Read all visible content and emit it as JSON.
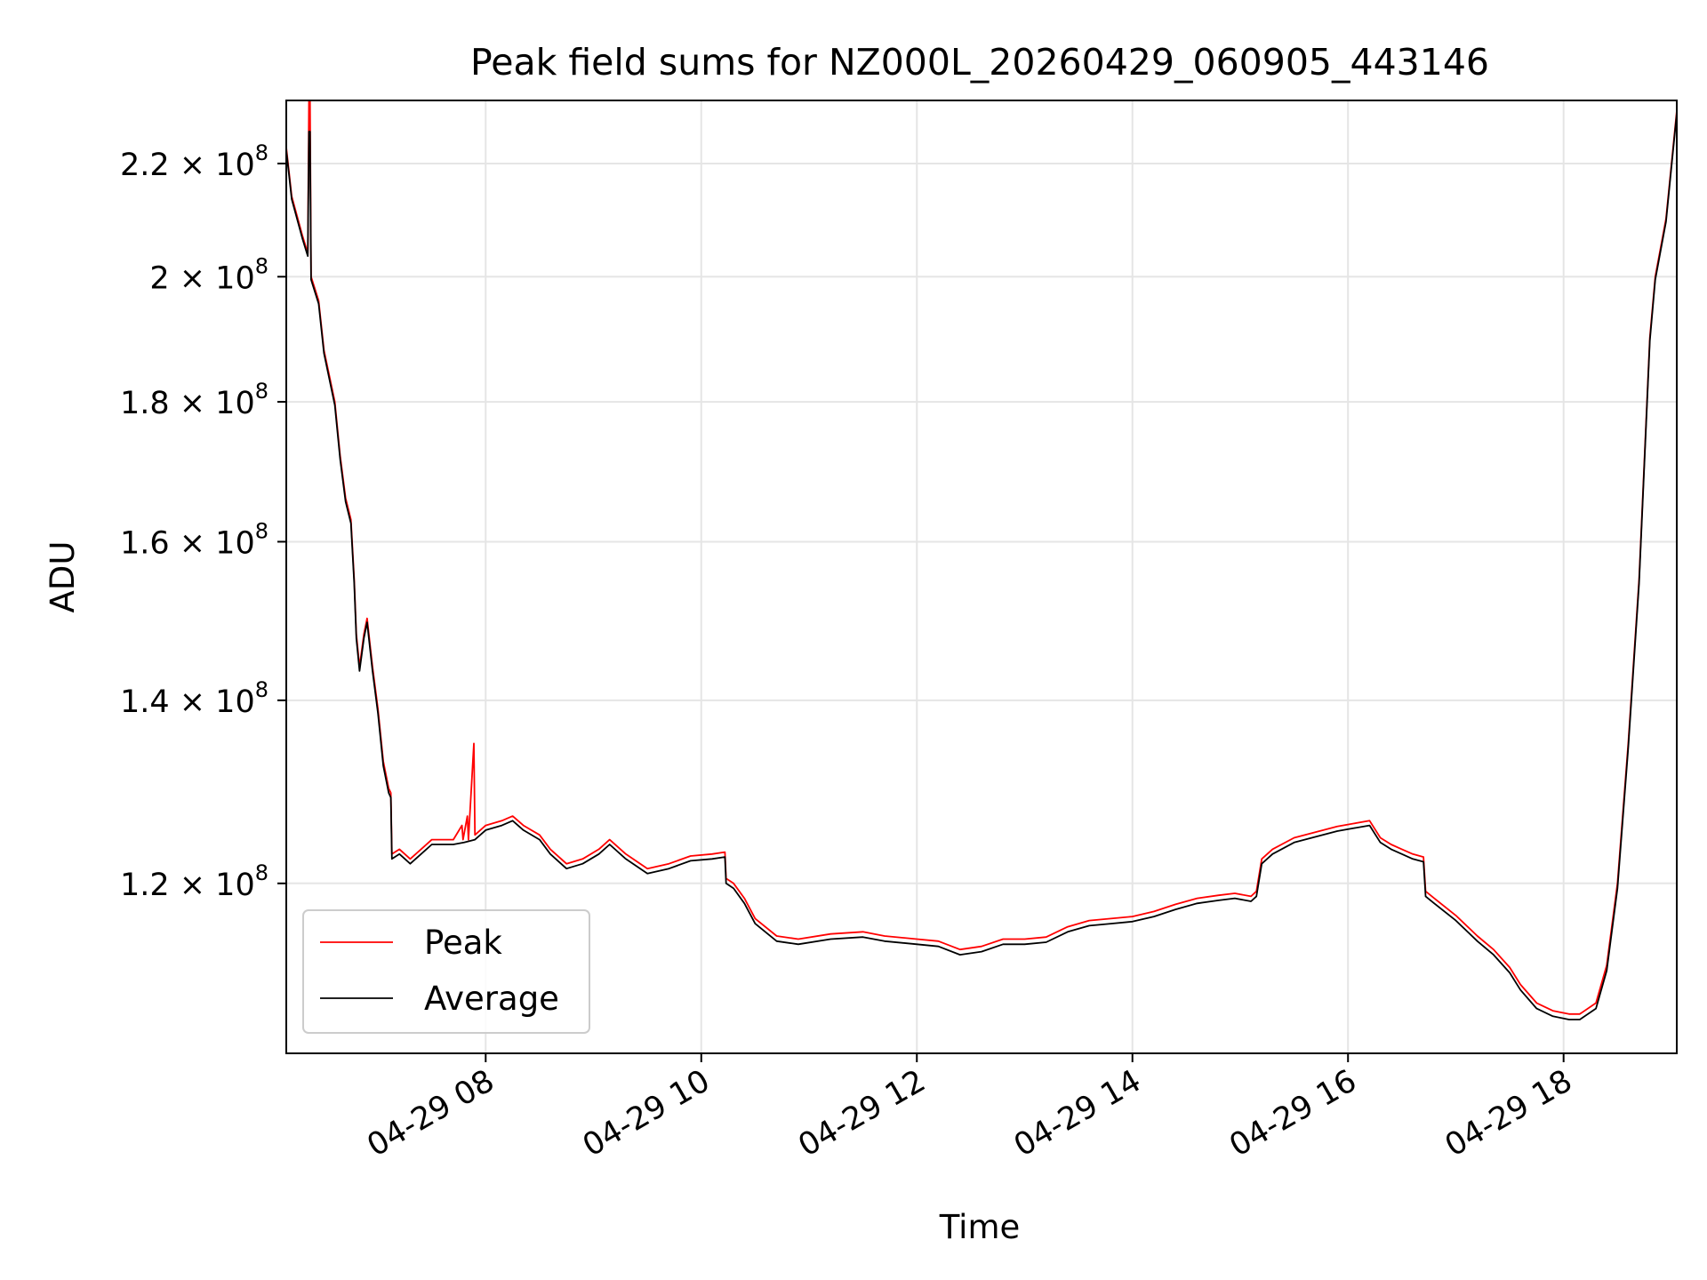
{
  "chart_data": {
    "type": "line",
    "title": "Peak field sums for NZ000L_20260429_060905_443146",
    "xlabel": "Time",
    "ylabel": "ADU",
    "x_unit": "hours of day, 2026-04-29",
    "xlim": [
      6.15,
      19.05
    ],
    "ylim": [
      104000000,
      232000000
    ],
    "y_scale": "log",
    "grid": true,
    "legend": {
      "position": "lower-left",
      "entries": [
        "Peak",
        "Average"
      ]
    },
    "x_ticks": [
      {
        "value": 8,
        "label": "04-29 08"
      },
      {
        "value": 10,
        "label": "04-29 10"
      },
      {
        "value": 12,
        "label": "04-29 12"
      },
      {
        "value": 14,
        "label": "04-29 14"
      },
      {
        "value": 16,
        "label": "04-29 16"
      },
      {
        "value": 18,
        "label": "04-29 18"
      }
    ],
    "y_ticks": [
      {
        "value": 120000000,
        "mantissa": "1.2",
        "exponent": "8"
      },
      {
        "value": 140000000,
        "mantissa": "1.4",
        "exponent": "8"
      },
      {
        "value": 160000000,
        "mantissa": "1.6",
        "exponent": "8"
      },
      {
        "value": 180000000,
        "mantissa": "1.8",
        "exponent": "8"
      },
      {
        "value": 200000000,
        "mantissa": "2",
        "exponent": "8"
      },
      {
        "value": 220000000,
        "mantissa": "2.2",
        "exponent": "8"
      }
    ],
    "series": [
      {
        "name": "Peak",
        "color": "#ff0000",
        "points": [
          [
            6.15,
            223000000
          ],
          [
            6.2,
            214000000
          ],
          [
            6.3,
            207000000
          ],
          [
            6.35,
            204000000
          ],
          [
            6.36,
            232000000
          ],
          [
            6.37,
            232000000
          ],
          [
            6.38,
            200000000
          ],
          [
            6.45,
            196000000
          ],
          [
            6.5,
            188000000
          ],
          [
            6.6,
            180000000
          ],
          [
            6.65,
            172000000
          ],
          [
            6.7,
            166000000
          ],
          [
            6.75,
            163000000
          ],
          [
            6.78,
            155000000
          ],
          [
            6.8,
            148000000
          ],
          [
            6.83,
            144000000
          ],
          [
            6.87,
            148000000
          ],
          [
            6.9,
            150000000
          ],
          [
            6.95,
            144000000
          ],
          [
            7.0,
            139000000
          ],
          [
            7.05,
            133000000
          ],
          [
            7.1,
            130000000
          ],
          [
            7.12,
            129500000
          ],
          [
            7.13,
            123000000
          ],
          [
            7.2,
            123500000
          ],
          [
            7.3,
            122500000
          ],
          [
            7.4,
            123500000
          ],
          [
            7.5,
            124500000
          ],
          [
            7.6,
            124500000
          ],
          [
            7.7,
            124500000
          ],
          [
            7.78,
            126000000
          ],
          [
            7.79,
            124500000
          ],
          [
            7.83,
            127000000
          ],
          [
            7.84,
            124500000
          ],
          [
            7.89,
            135000000
          ],
          [
            7.9,
            125000000
          ],
          [
            8.0,
            126000000
          ],
          [
            8.15,
            126500000
          ],
          [
            8.25,
            127000000
          ],
          [
            8.35,
            126000000
          ],
          [
            8.5,
            125000000
          ],
          [
            8.6,
            123500000
          ],
          [
            8.75,
            122000000
          ],
          [
            8.9,
            122500000
          ],
          [
            9.05,
            123500000
          ],
          [
            9.15,
            124500000
          ],
          [
            9.3,
            123000000
          ],
          [
            9.5,
            121500000
          ],
          [
            9.7,
            122000000
          ],
          [
            9.9,
            122800000
          ],
          [
            10.1,
            123000000
          ],
          [
            10.22,
            123200000
          ],
          [
            10.23,
            120500000
          ],
          [
            10.3,
            120000000
          ],
          [
            10.4,
            118500000
          ],
          [
            10.5,
            116500000
          ],
          [
            10.7,
            114800000
          ],
          [
            10.9,
            114500000
          ],
          [
            11.2,
            115000000
          ],
          [
            11.5,
            115200000
          ],
          [
            11.7,
            114800000
          ],
          [
            12.0,
            114500000
          ],
          [
            12.2,
            114300000
          ],
          [
            12.4,
            113500000
          ],
          [
            12.6,
            113800000
          ],
          [
            12.8,
            114500000
          ],
          [
            13.0,
            114500000
          ],
          [
            13.2,
            114700000
          ],
          [
            13.4,
            115700000
          ],
          [
            13.6,
            116300000
          ],
          [
            13.8,
            116500000
          ],
          [
            14.0,
            116700000
          ],
          [
            14.2,
            117200000
          ],
          [
            14.4,
            117900000
          ],
          [
            14.6,
            118500000
          ],
          [
            14.8,
            118800000
          ],
          [
            14.95,
            119000000
          ],
          [
            15.1,
            118700000
          ],
          [
            15.15,
            119200000
          ],
          [
            15.2,
            122500000
          ],
          [
            15.3,
            123500000
          ],
          [
            15.5,
            124700000
          ],
          [
            15.7,
            125300000
          ],
          [
            15.9,
            125900000
          ],
          [
            16.05,
            126200000
          ],
          [
            16.2,
            126500000
          ],
          [
            16.3,
            124700000
          ],
          [
            16.4,
            124000000
          ],
          [
            16.5,
            123500000
          ],
          [
            16.6,
            123000000
          ],
          [
            16.7,
            122700000
          ],
          [
            16.72,
            119200000
          ],
          [
            16.8,
            118500000
          ],
          [
            17.0,
            116800000
          ],
          [
            17.2,
            114800000
          ],
          [
            17.35,
            113500000
          ],
          [
            17.5,
            111800000
          ],
          [
            17.6,
            110200000
          ],
          [
            17.75,
            108500000
          ],
          [
            17.9,
            107800000
          ],
          [
            18.05,
            107500000
          ],
          [
            18.15,
            107500000
          ],
          [
            18.3,
            108500000
          ],
          [
            18.4,
            112000000
          ],
          [
            18.5,
            120000000
          ],
          [
            18.6,
            135000000
          ],
          [
            18.7,
            155000000
          ],
          [
            18.8,
            190000000
          ],
          [
            18.85,
            200000000
          ],
          [
            18.95,
            210000000
          ],
          [
            19.05,
            230000000
          ]
        ]
      },
      {
        "name": "Average",
        "color": "#000000",
        "points": [
          [
            6.15,
            222500000
          ],
          [
            6.2,
            213500000
          ],
          [
            6.3,
            206500000
          ],
          [
            6.35,
            203500000
          ],
          [
            6.36,
            226000000
          ],
          [
            6.37,
            226000000
          ],
          [
            6.38,
            199500000
          ],
          [
            6.45,
            195500000
          ],
          [
            6.5,
            187500000
          ],
          [
            6.6,
            179500000
          ],
          [
            6.65,
            171500000
          ],
          [
            6.7,
            165500000
          ],
          [
            6.75,
            162500000
          ],
          [
            6.78,
            154500000
          ],
          [
            6.8,
            147500000
          ],
          [
            6.83,
            143500000
          ],
          [
            6.87,
            147500000
          ],
          [
            6.9,
            149500000
          ],
          [
            6.95,
            143500000
          ],
          [
            7.0,
            138500000
          ],
          [
            7.05,
            132500000
          ],
          [
            7.1,
            129500000
          ],
          [
            7.12,
            129000000
          ],
          [
            7.13,
            122500000
          ],
          [
            7.2,
            123000000
          ],
          [
            7.3,
            122000000
          ],
          [
            7.4,
            123000000
          ],
          [
            7.5,
            124000000
          ],
          [
            7.6,
            124000000
          ],
          [
            7.7,
            124000000
          ],
          [
            7.8,
            124200000
          ],
          [
            7.9,
            124500000
          ],
          [
            8.0,
            125500000
          ],
          [
            8.15,
            126000000
          ],
          [
            8.25,
            126500000
          ],
          [
            8.35,
            125500000
          ],
          [
            8.5,
            124500000
          ],
          [
            8.6,
            123000000
          ],
          [
            8.75,
            121500000
          ],
          [
            8.9,
            122000000
          ],
          [
            9.05,
            123000000
          ],
          [
            9.15,
            124000000
          ],
          [
            9.3,
            122500000
          ],
          [
            9.5,
            121000000
          ],
          [
            9.7,
            121500000
          ],
          [
            9.9,
            122300000
          ],
          [
            10.1,
            122500000
          ],
          [
            10.22,
            122700000
          ],
          [
            10.23,
            120000000
          ],
          [
            10.3,
            119500000
          ],
          [
            10.4,
            118000000
          ],
          [
            10.5,
            116000000
          ],
          [
            10.7,
            114300000
          ],
          [
            10.9,
            114000000
          ],
          [
            11.2,
            114500000
          ],
          [
            11.5,
            114700000
          ],
          [
            11.7,
            114300000
          ],
          [
            12.0,
            114000000
          ],
          [
            12.2,
            113800000
          ],
          [
            12.4,
            113000000
          ],
          [
            12.6,
            113300000
          ],
          [
            12.8,
            114000000
          ],
          [
            13.0,
            114000000
          ],
          [
            13.2,
            114200000
          ],
          [
            13.4,
            115200000
          ],
          [
            13.6,
            115800000
          ],
          [
            13.8,
            116000000
          ],
          [
            14.0,
            116200000
          ],
          [
            14.2,
            116700000
          ],
          [
            14.4,
            117400000
          ],
          [
            14.6,
            118000000
          ],
          [
            14.8,
            118300000
          ],
          [
            14.95,
            118500000
          ],
          [
            15.1,
            118200000
          ],
          [
            15.15,
            118700000
          ],
          [
            15.2,
            122000000
          ],
          [
            15.3,
            123000000
          ],
          [
            15.5,
            124200000
          ],
          [
            15.7,
            124800000
          ],
          [
            15.9,
            125400000
          ],
          [
            16.05,
            125700000
          ],
          [
            16.2,
            126000000
          ],
          [
            16.3,
            124200000
          ],
          [
            16.4,
            123500000
          ],
          [
            16.5,
            123000000
          ],
          [
            16.6,
            122500000
          ],
          [
            16.7,
            122200000
          ],
          [
            16.72,
            118700000
          ],
          [
            16.8,
            118000000
          ],
          [
            17.0,
            116300000
          ],
          [
            17.2,
            114300000
          ],
          [
            17.35,
            113000000
          ],
          [
            17.5,
            111300000
          ],
          [
            17.6,
            109700000
          ],
          [
            17.75,
            108000000
          ],
          [
            17.9,
            107300000
          ],
          [
            18.05,
            107000000
          ],
          [
            18.15,
            107000000
          ],
          [
            18.3,
            108000000
          ],
          [
            18.4,
            111500000
          ],
          [
            18.5,
            119500000
          ],
          [
            18.6,
            134500000
          ],
          [
            18.7,
            154500000
          ],
          [
            18.8,
            189500000
          ],
          [
            18.85,
            199500000
          ],
          [
            18.95,
            209500000
          ],
          [
            19.05,
            229500000
          ]
        ]
      }
    ]
  }
}
